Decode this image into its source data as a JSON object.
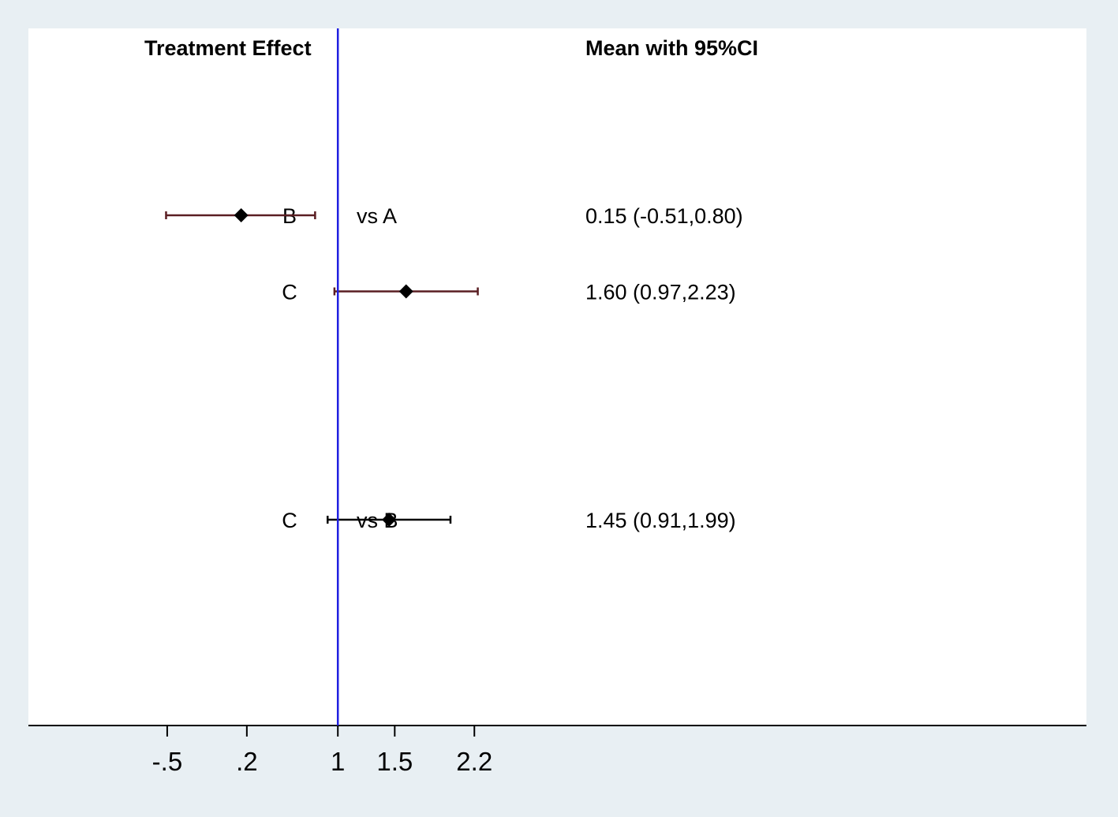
{
  "chart_data": {
    "type": "forest",
    "headers": {
      "left": "Treatment Effect",
      "right": "Mean with 95%CI"
    },
    "reference_line": 1,
    "xlim": [
      -1.72,
      7.58
    ],
    "x_ticks": [
      {
        "value": -0.5,
        "label": "-.5"
      },
      {
        "value": 0.2,
        "label": ".2"
      },
      {
        "value": 1,
        "label": "1"
      },
      {
        "value": 1.5,
        "label": "1.5"
      },
      {
        "value": 2.2,
        "label": "2.2"
      }
    ],
    "grid": false,
    "rows": [
      {
        "treatment": "B",
        "comparator": "vs A",
        "mean": 0.15,
        "lower": -0.51,
        "upper": 0.8,
        "ci_text": "0.15 (-0.51,0.80)",
        "slot": 0
      },
      {
        "treatment": "C",
        "comparator": "",
        "mean": 1.6,
        "lower": 0.97,
        "upper": 2.23,
        "ci_text": "1.60 (0.97,2.23)",
        "slot": 1
      },
      {
        "treatment": "C",
        "comparator": "vs B",
        "mean": 1.45,
        "lower": 0.91,
        "upper": 1.99,
        "ci_text": "1.45 (0.91,1.99)",
        "slot": 4
      }
    ],
    "colors": {
      "reference_line": "#1f1fe0",
      "ci_line_first_comparison": "#5a1e22",
      "ci_line_second_comparison": "#000000",
      "marker": "#000000",
      "plot_background": "#ffffff",
      "outer_background": "#e8eff3"
    }
  }
}
